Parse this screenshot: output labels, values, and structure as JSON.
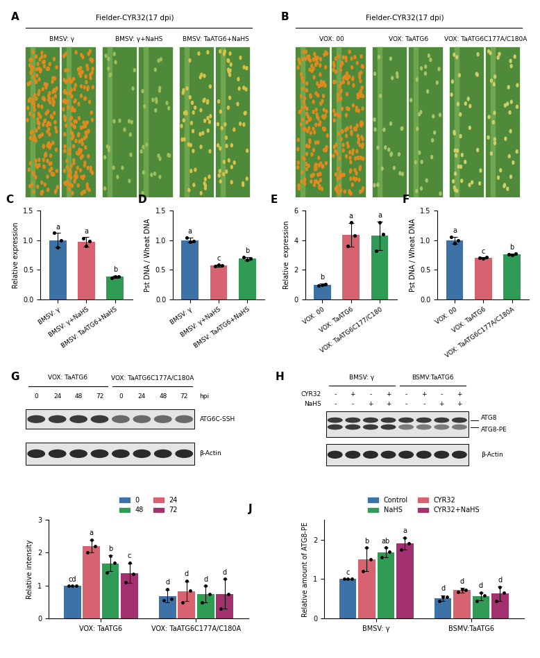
{
  "chart_data": [
    {
      "type": "bar",
      "panel": "C",
      "ylabel": "Relative expression",
      "categories": [
        "BMSV: γ",
        "BMSV: γ+NaHS",
        "BMSV: TaATG6+NaHS"
      ],
      "values": [
        1.0,
        0.97,
        0.38
      ],
      "errors": [
        0.12,
        0.08,
        0.02
      ],
      "points": [
        [
          1.12,
          0.88,
          1.0
        ],
        [
          1.03,
          0.9,
          0.98
        ],
        [
          0.36,
          0.39,
          0.38
        ]
      ],
      "significance": [
        "a",
        "a",
        "b"
      ],
      "colors": [
        "#3d72a6",
        "#d6636f",
        "#2f9b55"
      ],
      "ylim": [
        0.0,
        1.5
      ],
      "yticks": [
        0.0,
        0.5,
        1.0,
        1.5
      ]
    },
    {
      "type": "bar",
      "panel": "D",
      "ylabel": "Pst DNA / Wheat DNA",
      "categories": [
        "BMSV: γ",
        "BMSV: γ+NaHS",
        "BMSV: TaATG6+NaHS"
      ],
      "values": [
        1.0,
        0.57,
        0.69
      ],
      "errors": [
        0.04,
        0.02,
        0.03
      ],
      "points": [
        [
          1.04,
          0.97,
          0.99
        ],
        [
          0.56,
          0.58,
          0.57
        ],
        [
          0.72,
          0.67,
          0.69
        ]
      ],
      "significance": [
        "a",
        "c",
        "b"
      ],
      "colors": [
        "#3d72a6",
        "#d6636f",
        "#2f9b55"
      ],
      "ylim": [
        0.0,
        1.5
      ],
      "yticks": [
        0.0,
        0.5,
        1.0,
        1.5
      ]
    },
    {
      "type": "bar",
      "panel": "E",
      "ylabel": "Relative  expression",
      "categories": [
        "VOX: 00",
        "VOX: TaATG6",
        "VOX: TaATG6C177/C180"
      ],
      "values": [
        1.0,
        4.35,
        4.3
      ],
      "errors": [
        0.06,
        0.8,
        0.95
      ],
      "points": [
        [
          0.95,
          1.0,
          1.05
        ],
        [
          3.6,
          5.2,
          4.3
        ],
        [
          3.3,
          5.2,
          4.4
        ]
      ],
      "significance": [
        "b",
        "a",
        "a"
      ],
      "colors": [
        "#3d72a6",
        "#d6636f",
        "#2f9b55"
      ],
      "ylim": [
        0,
        6
      ],
      "yticks": [
        0,
        2,
        4,
        6
      ]
    },
    {
      "type": "bar",
      "panel": "F",
      "ylabel": "Pst DNA / Wheat DNA",
      "categories": [
        "VOX: 00",
        "VOX: TaATG6",
        "VOX: TaATG6C177A/C180A"
      ],
      "values": [
        1.0,
        0.7,
        0.76
      ],
      "errors": [
        0.06,
        0.01,
        0.01
      ],
      "points": [
        [
          1.05,
          0.95,
          1.0
        ],
        [
          0.7,
          0.69,
          0.71
        ],
        [
          0.76,
          0.75,
          0.77
        ]
      ],
      "significance": [
        "a",
        "c",
        "b"
      ],
      "colors": [
        "#3d72a6",
        "#d6636f",
        "#2f9b55"
      ],
      "ylim": [
        0.0,
        1.5
      ],
      "yticks": [
        0.0,
        0.5,
        1.0,
        1.5
      ]
    },
    {
      "type": "bar",
      "panel": "I",
      "ylabel": "Relative intensity",
      "legend": "top",
      "categories": [
        "VOX: TaATG6",
        "VOX: TaATG6C177A/C180A"
      ],
      "series": [
        {
          "name": "0",
          "color": "#3d72a6",
          "values": [
            1.0,
            0.68
          ],
          "errors": [
            0.0,
            0.2
          ],
          "points": [
            [
              1.0,
              1.0,
              1.0
            ],
            [
              0.55,
              0.9,
              0.6
            ]
          ],
          "significance": [
            "cd",
            "d"
          ]
        },
        {
          "name": "24",
          "color": "#d6636f",
          "values": [
            2.2,
            0.83
          ],
          "errors": [
            0.2,
            0.3
          ],
          "points": [
            [
              2.0,
              2.4,
              2.2
            ],
            [
              0.5,
              1.15,
              0.85
            ]
          ],
          "significance": [
            "a",
            "d"
          ]
        },
        {
          "name": "48",
          "color": "#2f9b55",
          "values": [
            1.68,
            0.75
          ],
          "errors": [
            0.25,
            0.25
          ],
          "points": [
            [
              1.4,
              1.9,
              1.7
            ],
            [
              0.5,
              1.0,
              0.75
            ]
          ],
          "significance": [
            "b",
            "d"
          ]
        },
        {
          "name": "72",
          "color": "#a3306f",
          "values": [
            1.38,
            0.75
          ],
          "errors": [
            0.3,
            0.45
          ],
          "points": [
            [
              1.1,
              1.7,
              1.35
            ],
            [
              0.3,
              1.2,
              0.75
            ]
          ],
          "significance": [
            "c",
            "d"
          ]
        }
      ],
      "ylim": [
        0,
        3
      ],
      "yticks": [
        0,
        1,
        2,
        3
      ]
    },
    {
      "type": "bar",
      "panel": "J",
      "ylabel": "Relative amount of ATG8-PE",
      "legend": "top",
      "categories": [
        "BMSV: γ",
        "BSMV:TaATG6"
      ],
      "series": [
        {
          "name": "Control",
          "color": "#3d72a6",
          "values": [
            1.0,
            0.52
          ],
          "errors": [
            0.0,
            0.07
          ],
          "points": [
            [
              1.0,
              1.0,
              1.0
            ],
            [
              0.45,
              0.55,
              0.55
            ]
          ],
          "significance": [
            "c",
            "d"
          ]
        },
        {
          "name": "CYR32",
          "color": "#d6636f",
          "values": [
            1.5,
            0.72
          ],
          "errors": [
            0.3,
            0.06
          ],
          "points": [
            [
              1.2,
              1.8,
              1.5
            ],
            [
              0.68,
              0.75,
              0.73
            ]
          ],
          "significance": [
            "b",
            "d"
          ]
        },
        {
          "name": "NaHS",
          "color": "#2f9b55",
          "values": [
            1.68,
            0.56
          ],
          "errors": [
            0.12,
            0.1
          ],
          "points": [
            [
              1.55,
              1.8,
              1.7
            ],
            [
              0.45,
              0.65,
              0.58
            ]
          ],
          "significance": [
            "ab",
            "d"
          ]
        },
        {
          "name": "CYR32+NaHS",
          "color": "#a3306f",
          "values": [
            1.9,
            0.63
          ],
          "errors": [
            0.15,
            0.18
          ],
          "points": [
            [
              1.75,
              2.05,
              1.9
            ],
            [
              0.45,
              0.8,
              0.65
            ]
          ],
          "significance": [
            "a",
            "d"
          ]
        }
      ],
      "ylim": [
        0,
        2.5
      ],
      "yticks": [
        0,
        1,
        2
      ]
    }
  ],
  "images": [
    {
      "panel": "A",
      "title": "Fielder-CYR32(17 dpi)",
      "labels": [
        "BMSV: γ",
        "BMSV: γ+NaHS",
        "BMSV: TaATG6+NaHS"
      ]
    },
    {
      "panel": "B",
      "title": "Fielder-CYR32(17 dpi)",
      "labels": [
        "VOX: 00",
        "VOX: TaATG6",
        "VOX: TaATG6C177A/C180A"
      ]
    }
  ],
  "blots": [
    {
      "panel": "G",
      "groups": [
        "VOX: TaATG6",
        "VOX: TaATG6C177A/C180A"
      ],
      "lanes": [
        "0",
        "24",
        "48",
        "72",
        "0",
        "24",
        "48",
        "72"
      ],
      "lane_unit": "hpi",
      "bands": [
        "ATG6C-SSH",
        "β-Actin"
      ]
    },
    {
      "panel": "H",
      "groups": [
        "BMSV: γ",
        "BSMV:TaATG6"
      ],
      "treatments": [
        {
          "name": "CYR32",
          "signs": [
            "-",
            "+",
            "-",
            "+",
            "-",
            "+",
            "-",
            "+"
          ]
        },
        {
          "name": "NaHS",
          "signs": [
            "-",
            "-",
            "+",
            "+",
            "-",
            "-",
            "+",
            "+"
          ]
        }
      ],
      "bands": [
        "ATG8",
        "ATG8-PE",
        "β-Actin"
      ]
    }
  ]
}
